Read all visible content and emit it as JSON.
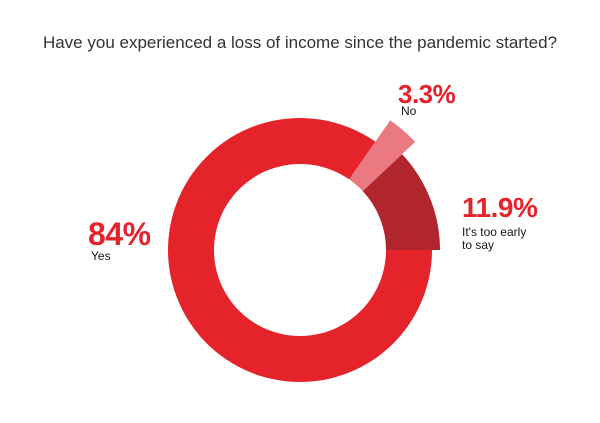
{
  "chart_data": {
    "type": "pie",
    "donut": true,
    "title": "Have you experienced a loss of income since the pandemic started?",
    "categories": [
      "Yes",
      "No",
      "It's too early to say"
    ],
    "values": [
      84,
      3.3,
      11.9
    ],
    "value_labels": [
      "84%",
      "3.3%",
      "11.9%"
    ],
    "unit": "%",
    "colors": [
      "#e4232b",
      "#ea7a7f",
      "#b1262c"
    ],
    "label_color": "#e4232b",
    "legend": "none"
  }
}
